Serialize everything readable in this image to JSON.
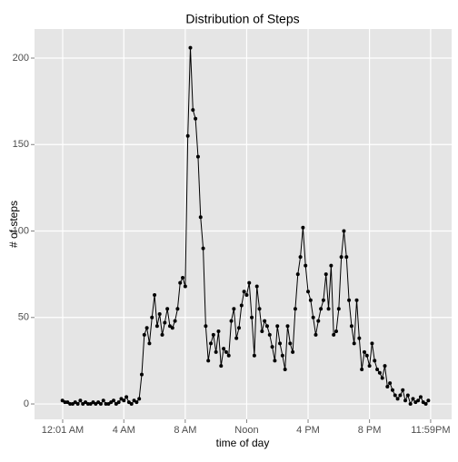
{
  "chart_data": {
    "type": "line",
    "title": "Distribution of Steps",
    "xlabel": "time of day",
    "ylabel": "# of steps",
    "x": [
      0,
      10,
      20,
      30,
      40,
      50,
      60,
      70,
      80,
      90,
      100,
      110,
      120,
      130,
      140,
      150,
      160,
      170,
      180,
      190,
      200,
      210,
      220,
      230,
      240,
      250,
      260,
      270,
      280,
      290,
      300,
      310,
      320,
      330,
      340,
      350,
      360,
      370,
      380,
      390,
      400,
      410,
      420,
      430,
      440,
      450,
      460,
      470,
      480,
      490,
      500,
      510,
      520,
      530,
      540,
      550,
      560,
      570,
      580,
      590,
      600,
      610,
      620,
      630,
      640,
      650,
      660,
      670,
      680,
      690,
      700,
      710,
      720,
      730,
      740,
      750,
      760,
      770,
      780,
      790,
      800,
      810,
      820,
      830,
      840,
      850,
      860,
      870,
      880,
      890,
      900,
      910,
      920,
      930,
      940,
      950,
      960,
      970,
      980,
      990,
      1000,
      1010,
      1020,
      1030,
      1040,
      1050,
      1060,
      1070,
      1080,
      1090,
      1100,
      1110,
      1120,
      1130,
      1140,
      1150,
      1160,
      1170,
      1180,
      1190,
      1200,
      1210,
      1220,
      1230,
      1240,
      1250,
      1260,
      1270,
      1280,
      1290,
      1300,
      1310,
      1320,
      1330,
      1340,
      1350,
      1360,
      1370,
      1380,
      1390,
      1400,
      1410,
      1420,
      1430
    ],
    "series": [
      {
        "name": "steps",
        "color": "#000000",
        "values": [
          2,
          1,
          1,
          0,
          0,
          1,
          0,
          2,
          0,
          1,
          0,
          0,
          1,
          0,
          1,
          0,
          2,
          0,
          0,
          1,
          2,
          0,
          1,
          3,
          2,
          4,
          1,
          0,
          2,
          1,
          3,
          17,
          40,
          44,
          35,
          50,
          63,
          45,
          52,
          40,
          47,
          55,
          45,
          44,
          48,
          55,
          70,
          73,
          68,
          155,
          206,
          170,
          165,
          143,
          108,
          90,
          45,
          25,
          35,
          40,
          30,
          42,
          22,
          32,
          30,
          28,
          48,
          55,
          38,
          44,
          57,
          65,
          63,
          70,
          50,
          28,
          68,
          55,
          42,
          48,
          45,
          40,
          33,
          25,
          45,
          35,
          28,
          20,
          45,
          35,
          30,
          55,
          75,
          85,
          102,
          80,
          65,
          60,
          50,
          40,
          48,
          55,
          60,
          75,
          55,
          80,
          40,
          42,
          55,
          85,
          100,
          85,
          60,
          45,
          35,
          60,
          38,
          20,
          30,
          28,
          22,
          35,
          25,
          20,
          18,
          15,
          22,
          10,
          12,
          8,
          5,
          3,
          5,
          8,
          2,
          5,
          0,
          3,
          1,
          2,
          4,
          1,
          0,
          2
        ]
      }
    ],
    "xlim": [
      -109,
      1521
    ],
    "ylim": [
      -8.9,
      216.8
    ],
    "xticks": [
      {
        "value": 1,
        "label": "12:01 AM"
      },
      {
        "value": 240,
        "label": "4 AM"
      },
      {
        "value": 480,
        "label": "8 AM"
      },
      {
        "value": 720,
        "label": "Noon"
      },
      {
        "value": 960,
        "label": "4 PM"
      },
      {
        "value": 1200,
        "label": "8 PM"
      },
      {
        "value": 1439,
        "label": "11:59PM"
      }
    ],
    "yticks": [
      0,
      50,
      100,
      150,
      200
    ],
    "grid": true
  }
}
